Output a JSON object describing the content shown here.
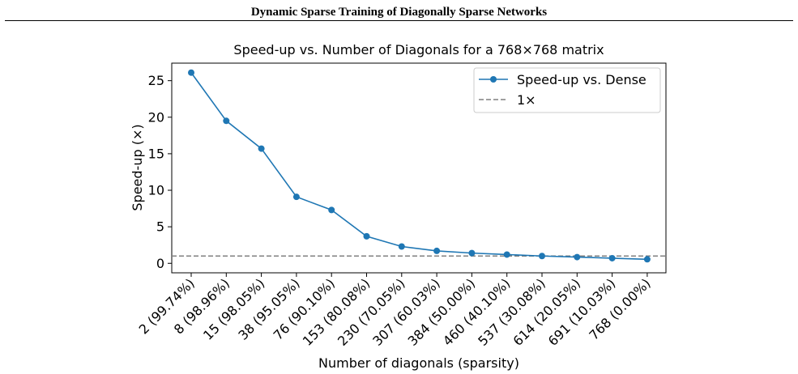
{
  "header": {
    "title": "Dynamic Sparse Training of Diagonally Sparse Networks"
  },
  "chart_data": {
    "type": "line",
    "title": "Speed-up vs. Number of Diagonals for a 768×768 matrix",
    "xlabel": "Number of diagonals (sparsity)",
    "ylabel": "Speed-up (×)",
    "categories": [
      "2 (99.74%)",
      "8 (98.96%)",
      "15 (98.05%)",
      "38 (95.05%)",
      "76 (90.10%)",
      "153 (80.08%)",
      "230 (70.05%)",
      "307 (60.03%)",
      "384 (50.00%)",
      "460 (40.10%)",
      "537 (30.08%)",
      "614 (20.05%)",
      "691 (10.03%)",
      "768 (0.00%)"
    ],
    "series": [
      {
        "name": "Speed-up vs. Dense",
        "values": [
          26.1,
          19.5,
          15.7,
          9.1,
          7.3,
          3.7,
          2.3,
          1.7,
          1.4,
          1.2,
          1.0,
          0.85,
          0.7,
          0.55
        ],
        "color": "#1f77b4",
        "marker": "circle"
      }
    ],
    "reference_line": {
      "label": "1×",
      "y": 1,
      "color": "#808080",
      "style": "dashed"
    },
    "yticks": [
      0,
      5,
      10,
      15,
      20,
      25
    ],
    "ylim": [
      -1.3,
      27.4
    ],
    "legend_position": "top-right",
    "grid": false
  }
}
